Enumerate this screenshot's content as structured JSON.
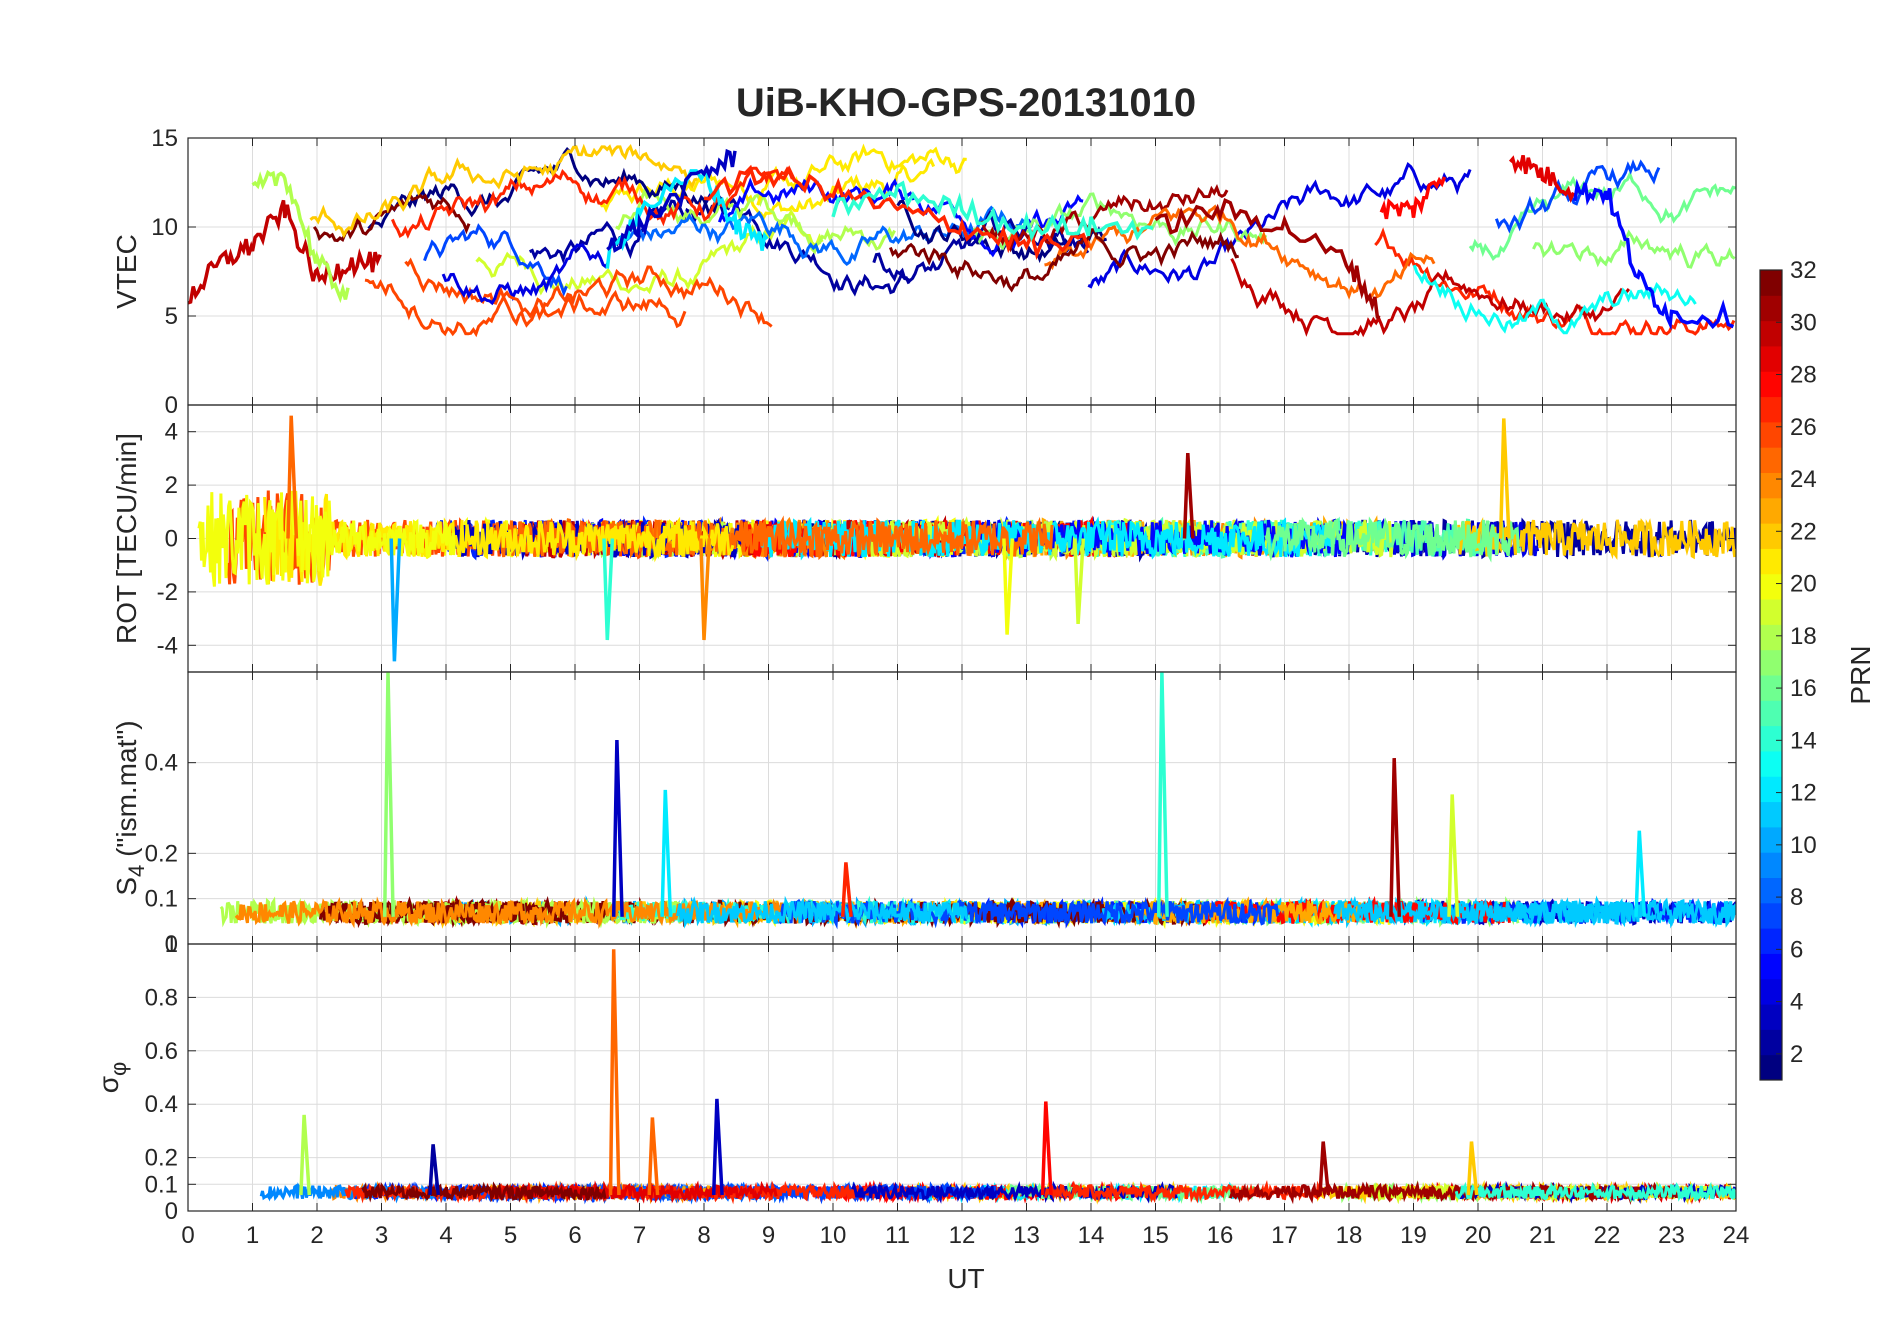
{
  "figure": {
    "title": "UiB-KHO-GPS-20131010",
    "xlabel": "UT",
    "colorbar_label": "PRN"
  },
  "colors": {
    "background": "#ffffff",
    "axis": "#262626",
    "grid": "#dcdcdc",
    "colormap": "jet"
  },
  "chart_data": [
    {
      "type": "line",
      "name": "vtec",
      "ylabel": "VTEC",
      "xlim": [
        0,
        24
      ],
      "ylim": [
        0,
        15
      ],
      "yticks": [
        0,
        5,
        10,
        15
      ],
      "xticks": [
        0,
        1,
        2,
        3,
        4,
        5,
        6,
        7,
        8,
        9,
        10,
        11,
        12,
        13,
        14,
        15,
        16,
        17,
        18,
        19,
        20,
        21,
        22,
        23,
        24
      ],
      "grid": true,
      "series_by": "PRN 1–32 (colour)",
      "series": [
        {
          "prn": 30,
          "x": [
            0,
            0.5,
            1,
            1.5,
            2,
            2.5,
            3
          ],
          "y": [
            6,
            8,
            9,
            11,
            7,
            8,
            8
          ]
        },
        {
          "prn": 18,
          "x": [
            1,
            1.5,
            2,
            2.5
          ],
          "y": [
            12,
            13,
            8,
            6
          ]
        },
        {
          "prn": 12,
          "x": [
            6.5,
            7,
            8,
            8.5,
            9
          ],
          "y": [
            8,
            11,
            13,
            10,
            9
          ]
        },
        {
          "prn": 3,
          "x": [
            6.5,
            7,
            8,
            8.5
          ],
          "y": [
            9,
            10,
            13,
            14
          ]
        },
        {
          "prn": 27,
          "x": [
            8,
            9,
            10,
            11,
            12,
            13,
            14
          ],
          "y": [
            12,
            13,
            12,
            11,
            10,
            9,
            9
          ]
        },
        {
          "prn": 14,
          "x": [
            10,
            11,
            12,
            13,
            14,
            15
          ],
          "y": [
            11,
            12,
            11,
            10,
            10,
            10
          ]
        },
        {
          "prn": 31,
          "x": [
            15,
            16,
            17,
            18,
            18.5
          ],
          "y": [
            10,
            11,
            10,
            8,
            5
          ]
        },
        {
          "prn": 28,
          "x": [
            18.5,
            19,
            19.5
          ],
          "y": [
            11,
            11,
            13
          ]
        },
        {
          "prn": 29,
          "x": [
            20.5,
            21,
            21.5
          ],
          "y": [
            14,
            13,
            12
          ]
        },
        {
          "prn": 5,
          "x": [
            21.5,
            22,
            22.5,
            23,
            24
          ],
          "y": [
            12,
            12,
            7,
            5,
            5
          ]
        }
      ]
    },
    {
      "type": "line",
      "name": "rot",
      "ylabel": "ROT [TECU/min]",
      "xlim": [
        0,
        24
      ],
      "ylim": [
        -5,
        5
      ],
      "yticks": [
        -4,
        -2,
        0,
        2,
        4
      ],
      "grid": true,
      "series_by": "PRN 1–32 (colour)",
      "spikes": [
        {
          "prn": 25,
          "x": 1.6,
          "y": 4.6
        },
        {
          "prn": 10,
          "x": 3.2,
          "y": -4.6
        },
        {
          "prn": 24,
          "x": 8.0,
          "y": -3.8
        },
        {
          "prn": 14,
          "x": 6.5,
          "y": -3.8
        },
        {
          "prn": 20,
          "x": 12.7,
          "y": -3.6
        },
        {
          "prn": 19,
          "x": 13.8,
          "y": -3.2
        },
        {
          "prn": 22,
          "x": 20.4,
          "y": 4.5
        },
        {
          "prn": 31,
          "x": 15.5,
          "y": 3.2
        }
      ]
    },
    {
      "type": "line",
      "name": "s4",
      "ylabel": "S",
      "ylabel_sub": "4",
      "ylabel_suffix": " (\"ism.mat\")",
      "xlim": [
        0,
        24
      ],
      "ylim": [
        0,
        0.6
      ],
      "yticks": [
        0,
        0.1,
        0.2,
        0.4
      ],
      "grid": true,
      "series_by": "PRN 1–32 (colour)",
      "spikes": [
        {
          "prn": 17,
          "x": 3.1,
          "y": 0.6
        },
        {
          "prn": 3,
          "x": 6.65,
          "y": 0.45
        },
        {
          "prn": 12,
          "x": 7.4,
          "y": 0.34
        },
        {
          "prn": 14,
          "x": 15.1,
          "y": 0.6
        },
        {
          "prn": 31,
          "x": 18.7,
          "y": 0.41
        },
        {
          "prn": 19,
          "x": 19.6,
          "y": 0.33
        },
        {
          "prn": 27,
          "x": 10.2,
          "y": 0.18
        },
        {
          "prn": 12,
          "x": 22.5,
          "y": 0.25
        }
      ]
    },
    {
      "type": "line",
      "name": "sigma_phi",
      "ylabel": "σ",
      "ylabel_sub": "φ",
      "xlim": [
        0,
        24
      ],
      "ylim": [
        0,
        1
      ],
      "yticks": [
        0,
        0.1,
        0.2,
        0.4,
        0.6,
        0.8,
        1
      ],
      "grid": true,
      "series_by": "PRN 1–32 (colour)",
      "spikes": [
        {
          "prn": 25,
          "x": 6.6,
          "y": 0.98
        },
        {
          "prn": 28,
          "x": 13.3,
          "y": 0.41
        },
        {
          "prn": 3,
          "x": 8.2,
          "y": 0.42
        },
        {
          "prn": 18,
          "x": 1.8,
          "y": 0.36
        },
        {
          "prn": 25,
          "x": 7.2,
          "y": 0.35
        },
        {
          "prn": 31,
          "x": 17.6,
          "y": 0.26
        },
        {
          "prn": 2,
          "x": 3.8,
          "y": 0.25
        },
        {
          "prn": 22,
          "x": 19.9,
          "y": 0.26
        }
      ]
    }
  ],
  "colorbar": {
    "label": "PRN",
    "range": [
      1,
      32
    ],
    "ticks": [
      2,
      4,
      6,
      8,
      10,
      12,
      14,
      16,
      18,
      20,
      22,
      24,
      26,
      28,
      30,
      32
    ]
  }
}
